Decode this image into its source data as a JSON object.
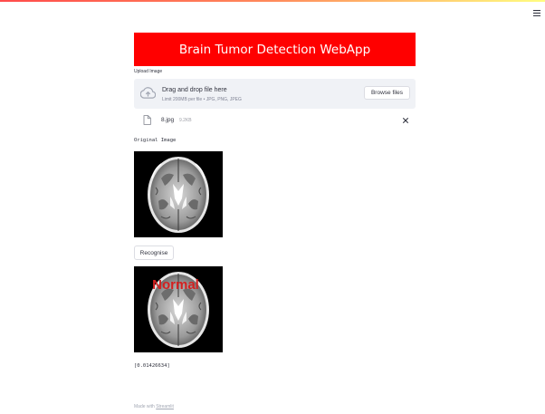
{
  "app": {
    "title": "Brain Tumor Detection WebApp",
    "banner_color": "#ff0000",
    "menu_icon": "hamburger-menu-icon"
  },
  "uploader": {
    "label": "Upload Image",
    "drop_title": "Drag and drop file here",
    "limit_text": "Limit 200MB per file • JPG, PNG, JPEG",
    "browse_label": "Browse files",
    "icon": "cloud-upload-icon"
  },
  "file": {
    "name": "8.jpg",
    "size": "9.2KB",
    "icon": "file-icon",
    "remove_icon": "close-icon"
  },
  "original": {
    "caption": "Original Image"
  },
  "recognise": {
    "label": "Recognise"
  },
  "result": {
    "overlay_text": "Normal",
    "overlay_color": "#d42020",
    "score": "[0.01426634]"
  },
  "footer": {
    "prefix": "Made with",
    "link": "Streamlit"
  }
}
